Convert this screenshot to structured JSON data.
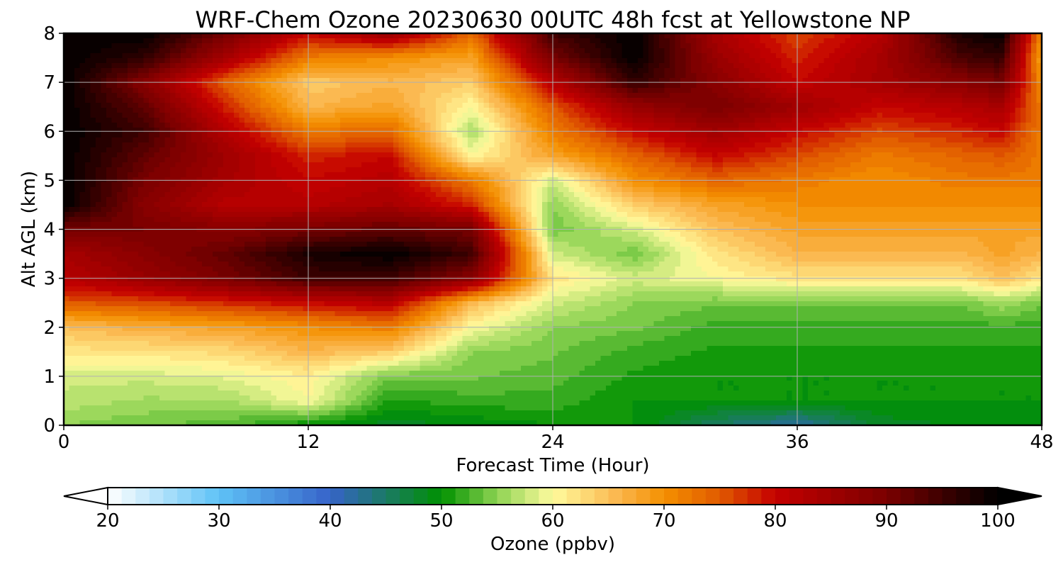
{
  "chart_data": {
    "type": "heatmap",
    "title": "WRF-Chem Ozone  20230630 00UTC 48h fcst at Yellowstone NP",
    "xlabel": "Forecast Time (Hour)",
    "ylabel": "Alt AGL (km)",
    "xlim": [
      0,
      48
    ],
    "ylim": [
      0,
      8
    ],
    "xticks": [
      0,
      12,
      24,
      36,
      48
    ],
    "xtick_labels": [
      "0",
      "12",
      "24",
      "36",
      "48"
    ],
    "yticks": [
      0,
      1,
      2,
      3,
      4,
      5,
      6,
      7,
      8
    ],
    "ytick_labels": [
      "0",
      "1",
      "2",
      "3",
      "4",
      "5",
      "6",
      "7",
      "8"
    ],
    "grid": true,
    "colorbar": {
      "label": "Ozone  (ppbv)",
      "min": 20,
      "max": 100,
      "extend": "both",
      "ticks": [
        20,
        30,
        40,
        50,
        60,
        70,
        80,
        90,
        100
      ],
      "tick_labels": [
        "20",
        "30",
        "40",
        "50",
        "60",
        "70",
        "80",
        "90",
        "100"
      ],
      "colors": [
        {
          "v": 20,
          "c": "#ffffff"
        },
        {
          "v": 30,
          "c": "#5ec2f6"
        },
        {
          "v": 40,
          "c": "#3663c9"
        },
        {
          "v": 50,
          "c": "#009100"
        },
        {
          "v": 55,
          "c": "#8ed352"
        },
        {
          "v": 60,
          "c": "#fffb9e"
        },
        {
          "v": 66,
          "c": "#fbb54c"
        },
        {
          "v": 70,
          "c": "#f49000"
        },
        {
          "v": 75,
          "c": "#e05a00"
        },
        {
          "v": 80,
          "c": "#c40000"
        },
        {
          "v": 90,
          "c": "#7a0000"
        },
        {
          "v": 100,
          "c": "#000000"
        }
      ]
    },
    "x": [
      0,
      4,
      8,
      12,
      16,
      20,
      24,
      28,
      32,
      36,
      40,
      44,
      46,
      48
    ],
    "y": [
      0,
      0.5,
      1,
      1.5,
      2,
      2.5,
      3,
      3.5,
      4,
      4.5,
      5,
      5.5,
      6,
      6.5,
      7,
      7.5,
      8
    ],
    "z": [
      [
        55,
        54,
        53,
        50,
        48,
        49,
        50,
        50,
        45,
        42,
        48,
        49,
        49,
        50
      ],
      [
        57,
        56,
        56,
        60,
        51,
        52,
        52,
        50,
        50,
        50,
        50,
        50,
        50,
        50
      ],
      [
        58,
        58,
        59,
        61,
        54,
        54,
        53,
        51,
        50,
        50,
        50,
        50,
        50,
        50
      ],
      [
        62,
        62,
        63,
        66,
        64,
        55,
        54,
        52,
        51,
        51,
        51,
        51,
        51,
        51
      ],
      [
        65,
        67,
        68,
        70,
        72,
        60,
        55,
        54,
        52,
        52,
        52,
        52,
        52,
        52
      ],
      [
        75,
        76,
        78,
        80,
        82,
        66,
        58,
        55,
        54,
        54,
        54,
        54,
        56,
        54
      ],
      [
        82,
        86,
        90,
        95,
        95,
        88,
        62,
        58,
        60,
        62,
        62,
        62,
        65,
        62
      ],
      [
        84,
        88,
        92,
        98,
        100,
        95,
        58,
        54,
        62,
        66,
        66,
        66,
        68,
        66
      ],
      [
        90,
        90,
        88,
        90,
        92,
        90,
        54,
        58,
        65,
        68,
        68,
        68,
        68,
        68
      ],
      [
        100,
        88,
        82,
        82,
        84,
        78,
        55,
        64,
        68,
        70,
        70,
        70,
        70,
        70
      ],
      [
        100,
        90,
        84,
        80,
        82,
        72,
        58,
        70,
        74,
        72,
        70,
        72,
        72,
        72
      ],
      [
        100,
        92,
        85,
        78,
        80,
        60,
        68,
        74,
        80,
        76,
        72,
        74,
        75,
        72
      ],
      [
        100,
        95,
        82,
        72,
        74,
        56,
        72,
        80,
        85,
        80,
        76,
        78,
        80,
        72
      ],
      [
        100,
        92,
        78,
        66,
        68,
        60,
        75,
        86,
        90,
        85,
        80,
        82,
        84,
        72
      ],
      [
        100,
        88,
        74,
        64,
        66,
        64,
        82,
        96,
        88,
        80,
        84,
        88,
        90,
        70
      ],
      [
        100,
        96,
        84,
        72,
        70,
        68,
        90,
        100,
        86,
        78,
        84,
        94,
        96,
        68
      ],
      [
        100,
        100,
        90,
        80,
        86,
        74,
        95,
        100,
        84,
        76,
        82,
        98,
        100,
        70
      ]
    ]
  }
}
